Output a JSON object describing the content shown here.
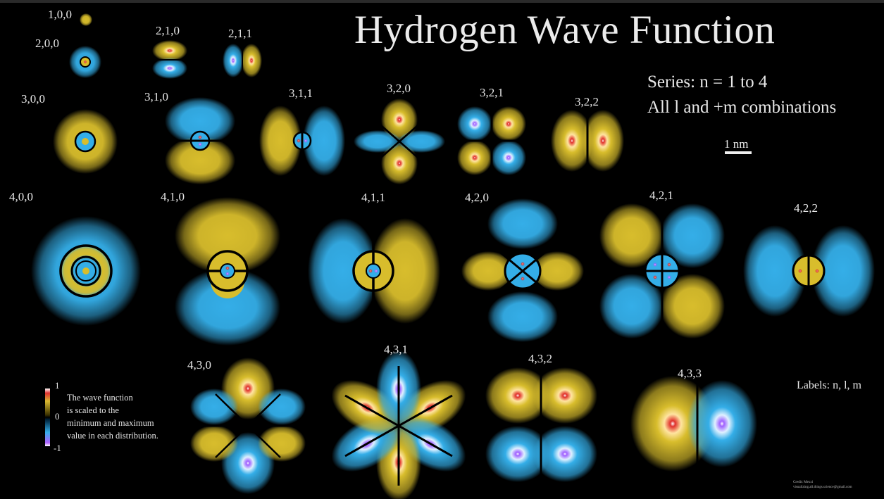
{
  "title": "Hydrogen Wave Function",
  "series_line1": "Series: n = 1 to 4",
  "series_line2": "All l and +m combinations",
  "scale_label": "1 nm",
  "labels_key": "Labels: n, l, m",
  "legend": {
    "max_tick": "1",
    "zero_tick": "0",
    "min_tick": "-1",
    "text_lines": [
      "The wave function",
      "is scaled to the",
      "minimum and maximum",
      "value in each distribution."
    ]
  },
  "credit": {
    "line1": "Credit: Mexxi",
    "line2": "visualizing.all.things.science@gmail.com"
  },
  "colors": {
    "positive": "#d8bd2c",
    "negative": "#34aee8",
    "positive_peak": "#e0302c",
    "negative_peak": "#a060ff",
    "background": "#000000"
  },
  "orbitals": [
    {
      "label": "1,0,0"
    },
    {
      "label": "2,0,0"
    },
    {
      "label": "2,1,0"
    },
    {
      "label": "2,1,1"
    },
    {
      "label": "3,0,0"
    },
    {
      "label": "3,1,0"
    },
    {
      "label": "3,1,1"
    },
    {
      "label": "3,2,0"
    },
    {
      "label": "3,2,1"
    },
    {
      "label": "3,2,2"
    },
    {
      "label": "4,0,0"
    },
    {
      "label": "4,1,0"
    },
    {
      "label": "4,1,1"
    },
    {
      "label": "4,2,0"
    },
    {
      "label": "4,2,1"
    },
    {
      "label": "4,2,2"
    },
    {
      "label": "4,3,0"
    },
    {
      "label": "4,3,1"
    },
    {
      "label": "4,3,2"
    },
    {
      "label": "4,3,3"
    }
  ]
}
